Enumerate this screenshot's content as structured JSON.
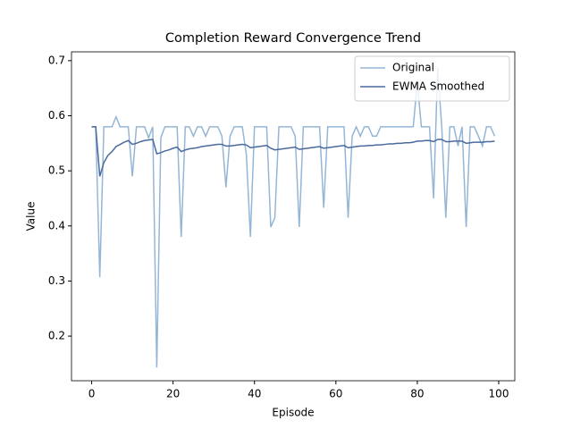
{
  "chart_data": {
    "type": "line",
    "title": "Completion Reward Convergence Trend",
    "x_label": "Episode",
    "y_label": "Value",
    "x": [
      0,
      1,
      2,
      3,
      4,
      5,
      6,
      7,
      8,
      9,
      10,
      11,
      12,
      13,
      14,
      15,
      16,
      17,
      18,
      19,
      20,
      21,
      22,
      23,
      24,
      25,
      26,
      27,
      28,
      29,
      30,
      31,
      32,
      33,
      34,
      35,
      36,
      37,
      38,
      39,
      40,
      41,
      42,
      43,
      44,
      45,
      46,
      47,
      48,
      49,
      50,
      51,
      52,
      53,
      54,
      55,
      56,
      57,
      58,
      59,
      60,
      61,
      62,
      63,
      64,
      65,
      66,
      67,
      68,
      69,
      70,
      71,
      72,
      73,
      74,
      75,
      76,
      77,
      78,
      79,
      80,
      81,
      82,
      83,
      84,
      85,
      86,
      87,
      88,
      89,
      90,
      91,
      92,
      93,
      94,
      95,
      96,
      97,
      98,
      99
    ],
    "series": [
      {
        "name": "Original",
        "color": "#94b6d6",
        "values": [
          0.58,
          0.58,
          0.307,
          0.58,
          0.58,
          0.58,
          0.598,
          0.58,
          0.58,
          0.58,
          0.49,
          0.58,
          0.58,
          0.58,
          0.56,
          0.58,
          0.143,
          0.56,
          0.58,
          0.58,
          0.58,
          0.58,
          0.38,
          0.58,
          0.58,
          0.563,
          0.58,
          0.58,
          0.563,
          0.58,
          0.58,
          0.58,
          0.563,
          0.47,
          0.563,
          0.58,
          0.58,
          0.58,
          0.53,
          0.38,
          0.58,
          0.58,
          0.58,
          0.58,
          0.398,
          0.415,
          0.58,
          0.58,
          0.58,
          0.58,
          0.563,
          0.398,
          0.58,
          0.58,
          0.58,
          0.58,
          0.58,
          0.433,
          0.58,
          0.58,
          0.58,
          0.58,
          0.58,
          0.415,
          0.563,
          0.58,
          0.563,
          0.58,
          0.58,
          0.563,
          0.563,
          0.58,
          0.58,
          0.58,
          0.58,
          0.58,
          0.58,
          0.58,
          0.58,
          0.58,
          0.66,
          0.58,
          0.58,
          0.58,
          0.45,
          0.687,
          0.58,
          0.415,
          0.58,
          0.58,
          0.545,
          0.58,
          0.398,
          0.58,
          0.58,
          0.563,
          0.545,
          0.58,
          0.58,
          0.563
        ]
      },
      {
        "name": "EWMA Smoothed",
        "color": "#4a6a9e",
        "values": [
          0.58,
          0.58,
          0.49,
          0.515,
          0.528,
          0.535,
          0.544,
          0.548,
          0.552,
          0.555,
          0.548,
          0.55,
          0.553,
          0.555,
          0.556,
          0.557,
          0.531,
          0.533,
          0.536,
          0.538,
          0.541,
          0.543,
          0.535,
          0.538,
          0.54,
          0.541,
          0.542,
          0.544,
          0.545,
          0.546,
          0.547,
          0.548,
          0.548,
          0.545,
          0.545,
          0.546,
          0.547,
          0.548,
          0.547,
          0.542,
          0.543,
          0.544,
          0.545,
          0.546,
          0.541,
          0.538,
          0.539,
          0.54,
          0.541,
          0.542,
          0.543,
          0.539,
          0.54,
          0.541,
          0.542,
          0.543,
          0.544,
          0.541,
          0.542,
          0.543,
          0.544,
          0.545,
          0.546,
          0.542,
          0.543,
          0.544,
          0.545,
          0.545,
          0.546,
          0.546,
          0.547,
          0.547,
          0.548,
          0.549,
          0.549,
          0.55,
          0.55,
          0.551,
          0.551,
          0.552,
          0.554,
          0.554,
          0.555,
          0.555,
          0.553,
          0.557,
          0.557,
          0.553,
          0.553,
          0.554,
          0.554,
          0.554,
          0.55,
          0.551,
          0.552,
          0.552,
          0.552,
          0.553,
          0.553,
          0.554
        ]
      }
    ],
    "xlim": [
      -4.95,
      103.95
    ],
    "xticks": [
      0,
      20,
      40,
      60,
      80,
      100
    ],
    "ylim": [
      0.119,
      0.716
    ],
    "yticks": [
      0.2,
      0.3,
      0.4,
      0.5,
      0.6,
      0.7
    ],
    "legend": "upper right"
  }
}
